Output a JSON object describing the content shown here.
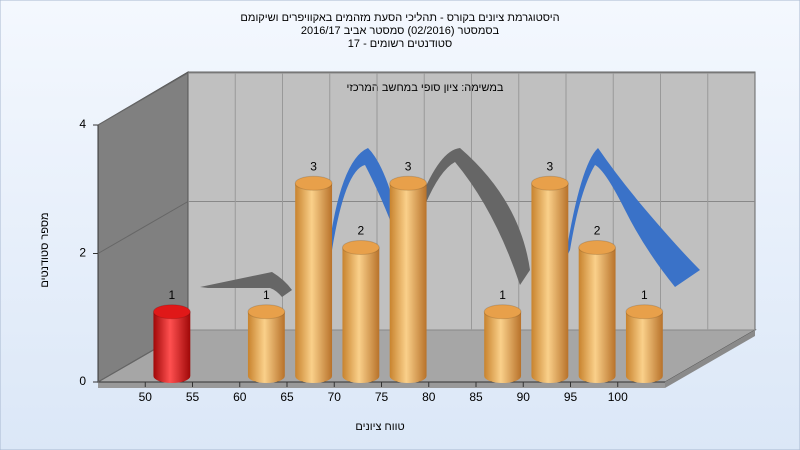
{
  "chart_data": {
    "type": "histogram",
    "title": "היסטוגרמת ציונים בקורס - תהליכי הסעת מזהמים באקוויפרים ושיקומם",
    "subtitle": "בסמסטר  (02/2016)  סמסטר אביב 2016/17",
    "subtitle2": "סטודנטים רשומים - 17",
    "annotation": "במשימה: ציון סופי במחשב המרכזי",
    "x_label": "טווח ציונים",
    "y_label": "מספר סטודנטים",
    "bins": [
      50,
      55,
      60,
      65,
      70,
      75,
      80,
      85,
      90,
      95,
      100,
      105
    ],
    "values": [
      1,
      0,
      1,
      3,
      2,
      3,
      0,
      1,
      3,
      2,
      1
    ],
    "colors": [
      "#e01818",
      "#e8a04a",
      "#e8a04a",
      "#e8a04a",
      "#e8a04a",
      "#e8a04a",
      "#e8a04a",
      "#e8a04a",
      "#e8a04a",
      "#e8a04a",
      "#e8a04a"
    ],
    "xlim": [
      45,
      105
    ],
    "xticks": [
      50,
      55,
      60,
      65,
      70,
      75,
      80,
      85,
      90,
      95,
      100
    ],
    "ylim": [
      0,
      4
    ],
    "yticks": [
      0,
      2,
      4
    ],
    "grid": true
  }
}
